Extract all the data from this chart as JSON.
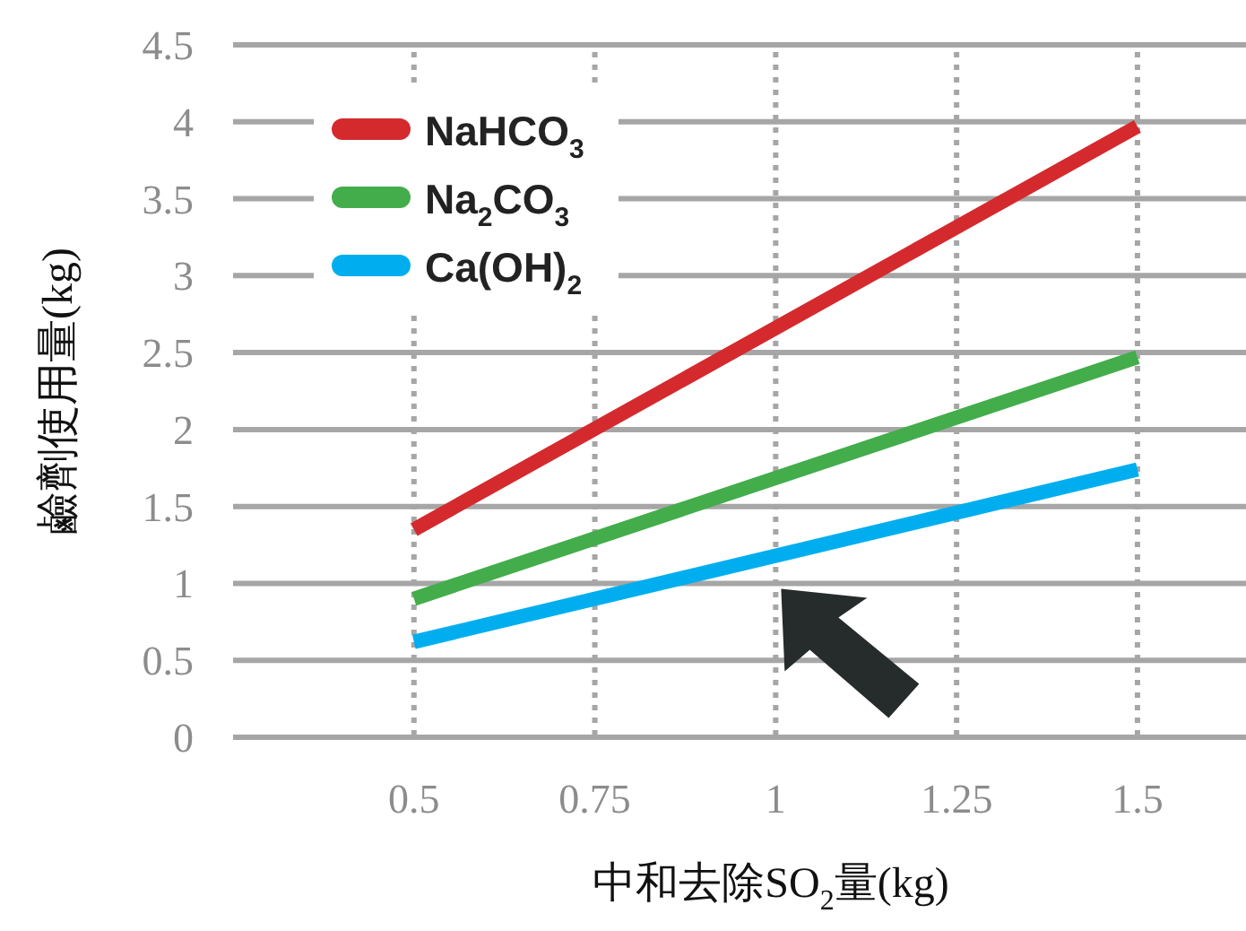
{
  "chart_data": {
    "type": "line",
    "xlabel": "中和去除SO$_{2}$量(kg)",
    "ylabel": "鹼劑使用量(kg)",
    "x": [
      0.5,
      1.5
    ],
    "xlim": [
      0.25,
      1.65
    ],
    "xticks": [
      0.5,
      0.75,
      1,
      1.25,
      1.5
    ],
    "ylim": [
      0,
      4.5
    ],
    "yticks": [
      0,
      0.5,
      1,
      1.5,
      2,
      2.5,
      3,
      3.5,
      4,
      4.5
    ],
    "grid": true,
    "legend": "top left",
    "marker": "none",
    "line_style": "solid",
    "series": [
      {
        "name": "NaHCO$_{3}$",
        "color": "#d42a2e",
        "values": [
          1.35,
          3.97
        ]
      },
      {
        "name": "Na$_{2}$CO$_{3}$",
        "color": "#43ad4b",
        "values": [
          0.9,
          2.47
        ]
      },
      {
        "name": "Ca(OH)$_{2}$",
        "color": "#00aeef",
        "values": [
          0.62,
          1.74
        ]
      }
    ]
  }
}
